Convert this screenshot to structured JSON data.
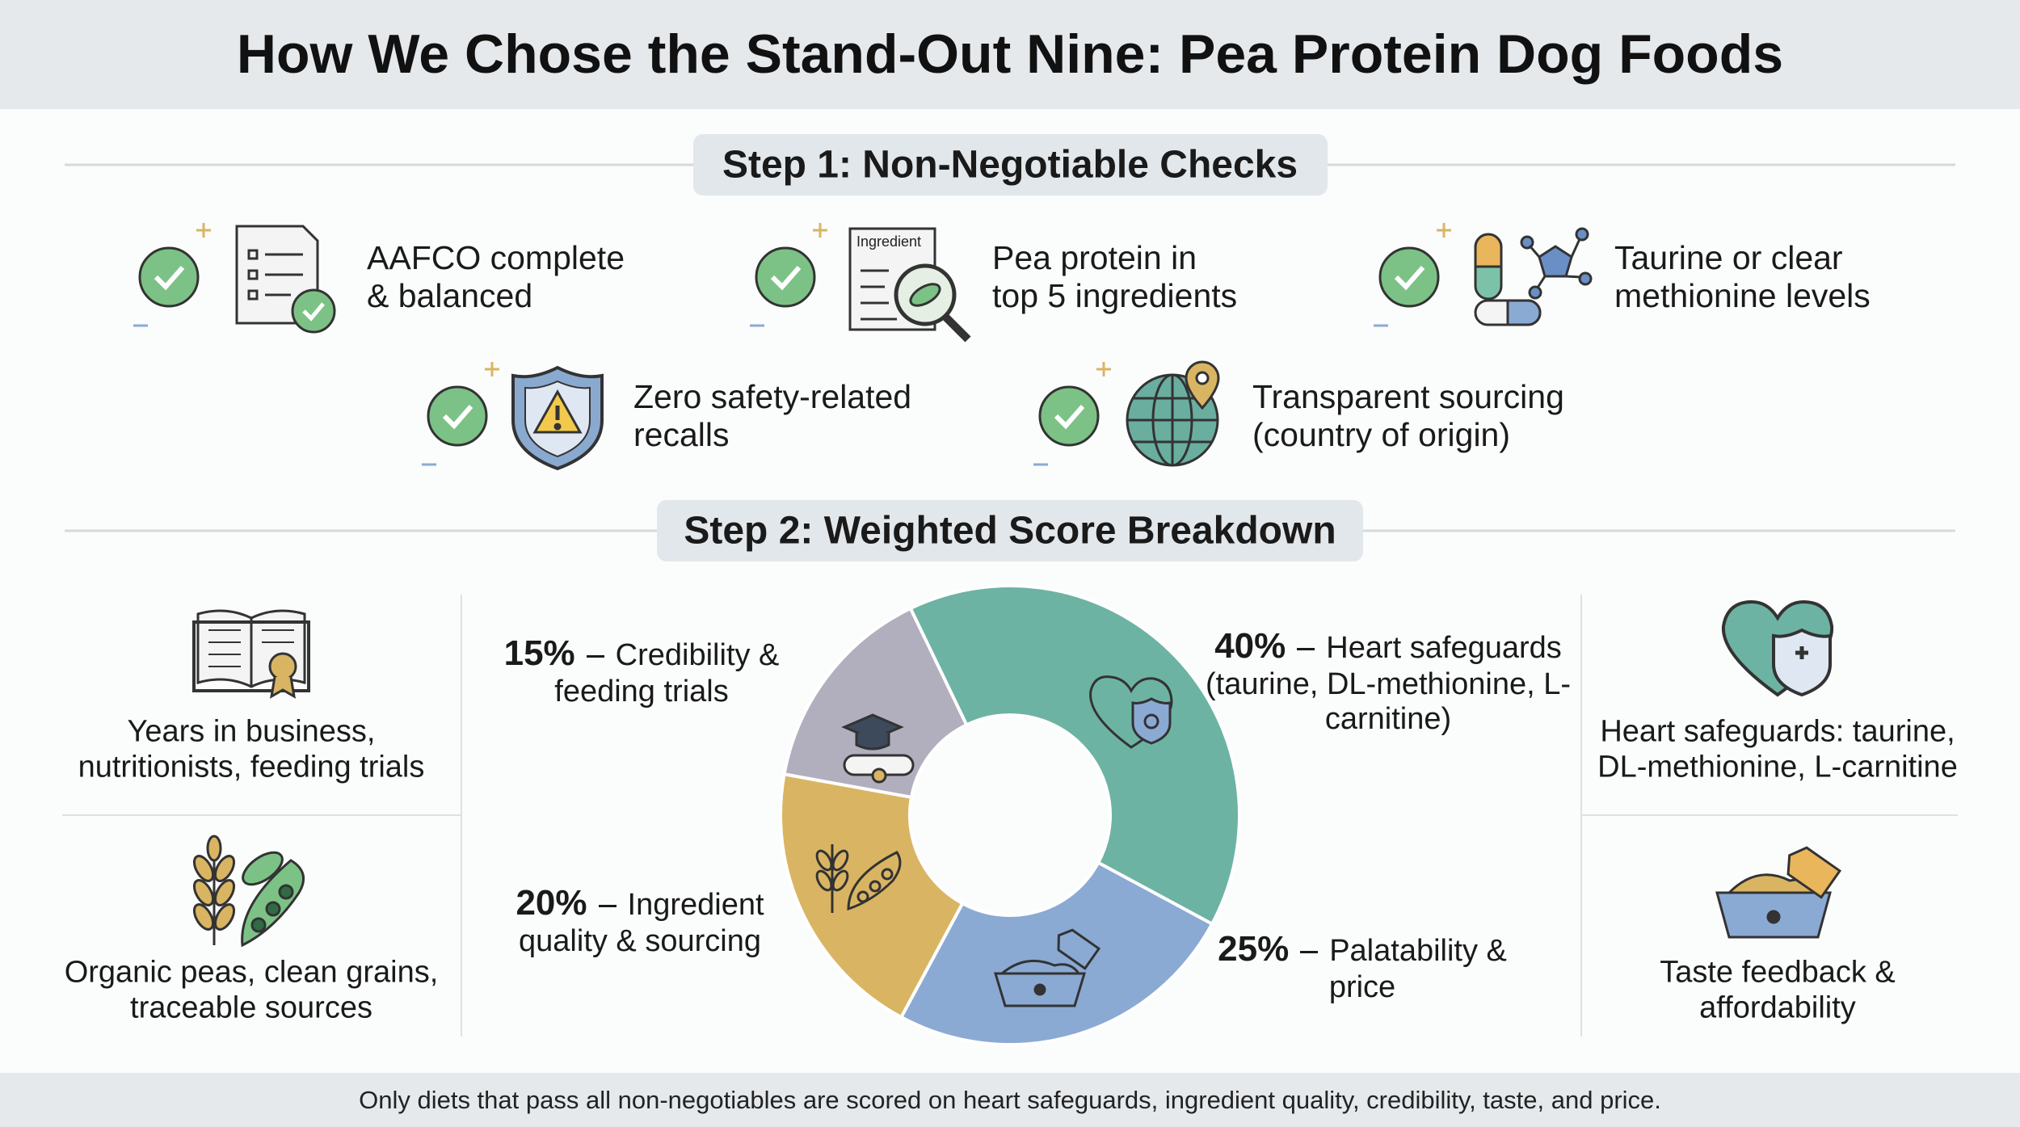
{
  "title": "How We Chose the Stand-Out Nine: Pea Protein Dog Foods",
  "step1": {
    "heading": "Step 1: Non-Negotiable Checks",
    "icon_tag": "Ingredient",
    "checks": [
      "AAFCO complete & balanced",
      "Pea protein in top 5 ingredients",
      "Taurine or clear methionine levels",
      "Zero safety-related recalls",
      "Transparent sourcing (country of origin)"
    ]
  },
  "step2": {
    "heading": "Step 2: Weighted Score Breakdown",
    "left_notes": [
      "Years in business, nutritionists, feeding trials",
      "Organic peas, clean grains, traceable sources"
    ],
    "right_notes": [
      "Heart safeguards: taurine, DL-methionine, L-carnitine",
      "Taste feedback & affordability"
    ]
  },
  "footer": "Only diets that pass all non-negotiables are scored on heart safeguards, ingredient quality, credibility, taste, and price.",
  "chart_data": {
    "type": "pie",
    "donut": true,
    "categories": [
      "Heart safeguards (taurine, DL-methionine, L-carnitine)",
      "Palatability & price",
      "Ingredient quality & sourcing",
      "Credibility & feeding trials"
    ],
    "values": [
      40,
      25,
      20,
      15
    ],
    "value_labels": [
      "40%",
      "25%",
      "20%",
      "15%"
    ],
    "colors": [
      "#6db3a3",
      "#8aaad4",
      "#d9b563",
      "#b1afbe"
    ]
  }
}
